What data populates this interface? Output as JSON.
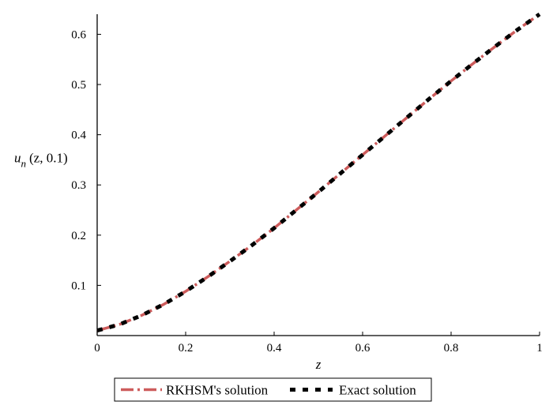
{
  "chart_data": {
    "type": "line",
    "title": "",
    "xlabel": "z",
    "ylabel": {
      "base": "u",
      "subscript": "n",
      "args": "(z, 0.1)"
    },
    "xlim": [
      0,
      1
    ],
    "ylim": [
      0,
      0.64
    ],
    "xticks": [
      0,
      0.2,
      0.4,
      0.6,
      0.8,
      1
    ],
    "xtick_labels": [
      "0",
      "0.2",
      "0.4",
      "0.6",
      "0.8",
      "1"
    ],
    "yticks": [
      0.1,
      0.2,
      0.3,
      0.4,
      0.5,
      0.6
    ],
    "ytick_labels": [
      "0.1",
      "0.2",
      "0.3",
      "0.4",
      "0.5",
      "0.6"
    ],
    "grid": false,
    "legend_position": "bottom",
    "x": [
      0,
      0.05,
      0.1,
      0.15,
      0.2,
      0.25,
      0.3,
      0.35,
      0.4,
      0.45,
      0.5,
      0.55,
      0.6,
      0.65,
      0.7,
      0.75,
      0.8,
      0.85,
      0.9,
      0.95,
      1
    ],
    "series": [
      {
        "name": "RKHSM's solution",
        "color": "#cd5c5c",
        "style": "dash-dot",
        "values": [
          0.01,
          0.022,
          0.04,
          0.062,
          0.088,
          0.117,
          0.148,
          0.18,
          0.214,
          0.25,
          0.286,
          0.323,
          0.36,
          0.397,
          0.434,
          0.471,
          0.507,
          0.542,
          0.576,
          0.609,
          0.64
        ]
      },
      {
        "name": "Exact solution",
        "color": "#000000",
        "style": "dotted",
        "values": [
          0.01,
          0.022,
          0.04,
          0.062,
          0.088,
          0.117,
          0.148,
          0.18,
          0.214,
          0.25,
          0.286,
          0.323,
          0.36,
          0.397,
          0.434,
          0.471,
          0.507,
          0.542,
          0.576,
          0.609,
          0.64
        ]
      }
    ]
  }
}
